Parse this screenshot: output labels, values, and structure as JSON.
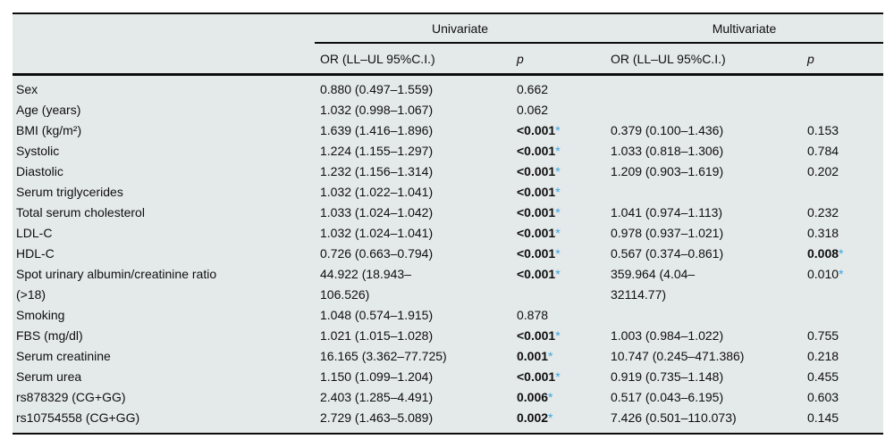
{
  "symbols": {
    "star": "*"
  },
  "colors": {
    "table_background": "#e4e9ea",
    "rule_black": "#0c0c0c",
    "significance_star_blue": "#3aa7e0",
    "page_background": "#ffffff"
  },
  "table": {
    "group_headers": {
      "univariate": "Univariate",
      "multivariate": "Multivariate"
    },
    "column_headers": {
      "or": "OR (LL–UL 95%C.I.)",
      "p": "p"
    },
    "rows": [
      {
        "label": "Sex",
        "u_or": "0.880 (0.497–1.559)",
        "u_p": {
          "text": "0.662",
          "bold": false,
          "star": false
        },
        "m_or": "",
        "m_p": null
      },
      {
        "label": "Age (years)",
        "u_or": "1.032 (0.998–1.067)",
        "u_p": {
          "text": "0.062",
          "bold": false,
          "star": false
        },
        "m_or": "",
        "m_p": null
      },
      {
        "label": "BMI (kg/m²)",
        "u_or": "1.639 (1.416–1.896)",
        "u_p": {
          "text": "<0.001",
          "bold": true,
          "star": true
        },
        "m_or": "0.379 (0.100–1.436)",
        "m_p": {
          "text": "0.153",
          "bold": false,
          "star": false
        }
      },
      {
        "label": "Systolic",
        "u_or": "1.224 (1.155–1.297)",
        "u_p": {
          "text": "<0.001",
          "bold": true,
          "star": true
        },
        "m_or": "1.033 (0.818–1.306)",
        "m_p": {
          "text": "0.784",
          "bold": false,
          "star": false
        }
      },
      {
        "label": "Diastolic",
        "u_or": "1.232 (1.156–1.314)",
        "u_p": {
          "text": "<0.001",
          "bold": true,
          "star": true
        },
        "m_or": "1.209 (0.903–1.619)",
        "m_p": {
          "text": "0.202",
          "bold": false,
          "star": false
        }
      },
      {
        "label": "Serum triglycerides",
        "u_or": "1.032 (1.022–1.041)",
        "u_p": {
          "text": "<0.001",
          "bold": true,
          "star": true
        },
        "m_or": "",
        "m_p": null
      },
      {
        "label": "Total serum cholesterol",
        "u_or": "1.033 (1.024–1.042)",
        "u_p": {
          "text": "<0.001",
          "bold": true,
          "star": true
        },
        "m_or": "1.041 (0.974–1.113)",
        "m_p": {
          "text": "0.232",
          "bold": false,
          "star": false
        }
      },
      {
        "label": "LDL-C",
        "u_or": "1.032 (1.024–1.041)",
        "u_p": {
          "text": "<0.001",
          "bold": true,
          "star": true
        },
        "m_or": "0.978 (0.937–1.021)",
        "m_p": {
          "text": "0.318",
          "bold": false,
          "star": false
        }
      },
      {
        "label": "HDL-C",
        "u_or": "0.726 (0.663–0.794)",
        "u_p": {
          "text": "<0.001",
          "bold": true,
          "star": true
        },
        "m_or": "0.567 (0.374–0.861)",
        "m_p": {
          "text": "0.008",
          "bold": true,
          "star": true
        }
      },
      {
        "label": "Spot urinary albumin/creatinine ratio\n(>18)",
        "u_or": "44.922 (18.943–\n106.526)",
        "u_p": {
          "text": "<0.001",
          "bold": true,
          "star": true
        },
        "m_or": "359.964 (4.04–\n32114.77)",
        "m_p": {
          "text": "0.010",
          "bold": false,
          "star": true
        }
      },
      {
        "label": "Smoking",
        "u_or": "1.048 (0.574–1.915)",
        "u_p": {
          "text": "0.878",
          "bold": false,
          "star": false
        },
        "m_or": "",
        "m_p": null
      },
      {
        "label": "FBS (mg/dl)",
        "u_or": "1.021 (1.015–1.028)",
        "u_p": {
          "text": "<0.001",
          "bold": true,
          "star": true
        },
        "m_or": "1.003 (0.984–1.022)",
        "m_p": {
          "text": "0.755",
          "bold": false,
          "star": false
        }
      },
      {
        "label": "Serum creatinine",
        "u_or": "16.165 (3.362–77.725)",
        "u_p": {
          "text": "0.001",
          "bold": true,
          "star": true
        },
        "m_or": "10.747 (0.245–471.386)",
        "m_p": {
          "text": "0.218",
          "bold": false,
          "star": false
        }
      },
      {
        "label": "Serum urea",
        "u_or": "1.150 (1.099–1.204)",
        "u_p": {
          "text": "<0.001",
          "bold": true,
          "star": true
        },
        "m_or": "0.919 (0.735–1.148)",
        "m_p": {
          "text": "0.455",
          "bold": false,
          "star": false
        }
      },
      {
        "label": "rs878329 (CG+GG)",
        "u_or": "2.403 (1.285–4.491)",
        "u_p": {
          "text": "0.006",
          "bold": true,
          "star": true
        },
        "m_or": "0.517 (0.043–6.195)",
        "m_p": {
          "text": "0.603",
          "bold": false,
          "star": false
        }
      },
      {
        "label": "rs10754558 (CG+GG)",
        "u_or": "2.729 (1.463–5.089)",
        "u_p": {
          "text": "0.002",
          "bold": true,
          "star": true
        },
        "m_or": "7.426 (0.501–110.073)",
        "m_p": {
          "text": "0.145",
          "bold": false,
          "star": false
        }
      }
    ]
  }
}
